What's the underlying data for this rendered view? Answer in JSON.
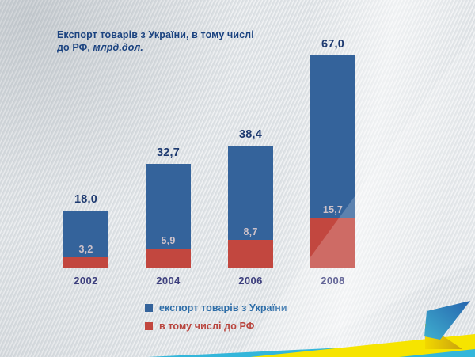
{
  "title": {
    "line1": "Експорт товарів з України, в тому числі",
    "line2_prefix": "до РФ, ",
    "line2_italic": "млрд.дол."
  },
  "chart_data": {
    "type": "bar",
    "stacked_overlay": true,
    "title": "Експорт товарів з України, в тому числі до РФ, млрд.дол.",
    "categories": [
      "2002",
      "2004",
      "2006",
      "2008"
    ],
    "series": [
      {
        "name": "експорт товарів з України",
        "role": "total",
        "color": "#34639b",
        "values": [
          18.0,
          32.7,
          38.4,
          67.0
        ]
      },
      {
        "name": "в тому числі до РФ",
        "role": "subset",
        "color": "#c2473f",
        "values": [
          3.2,
          5.9,
          8.7,
          15.7
        ]
      }
    ],
    "value_labels": {
      "totals": [
        "18,0",
        "32,7",
        "38,4",
        "67,0"
      ],
      "subset": [
        "3,2",
        "5,9",
        "8,7",
        "15,7"
      ]
    },
    "xlabel": "",
    "ylabel": "",
    "ylim": [
      0,
      70
    ],
    "grid": false,
    "axes_visible": "baseline-only",
    "legend_position": "bottom"
  },
  "legend": {
    "items": [
      {
        "label": "експорт товарів з України",
        "swatch_color": "#34639b",
        "text_color": "#2d6da8"
      },
      {
        "label": "в тому числі до РФ",
        "swatch_color": "#c2473f",
        "text_color": "#b9453e"
      }
    ]
  },
  "colors": {
    "background": "#dfe3e6",
    "bar_blue": "#34639b",
    "bar_red": "#c2473f",
    "title_text": "#1b4380",
    "total_label": "#1e3a70",
    "inner_label": "#cfc2c9",
    "year_label": "#3d3f7d",
    "baseline": "#b2b6ba",
    "decor_cyan": "#33b6da",
    "decor_yellow": "#f6e400",
    "decor_wing_teal": "#3fb0cf",
    "decor_wing_blue": "#2664ae",
    "decor_gold": "#e3c016"
  }
}
